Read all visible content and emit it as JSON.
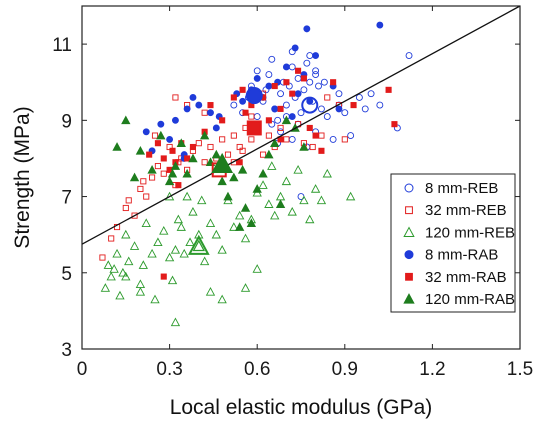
{
  "chart_data": {
    "type": "scatter",
    "xlabel": "Local elastic modulus (GPa)",
    "ylabel": "Strength (MPa)",
    "xlim": [
      0,
      1.5
    ],
    "ylim": [
      3,
      12
    ],
    "xticks": [
      "0",
      "0.3",
      "0.6",
      "0.9",
      "1.2",
      "1.5"
    ],
    "yticks": [
      "3",
      "5",
      "7",
      "9",
      "11"
    ],
    "xtick_values": [
      0,
      0.3,
      0.6,
      0.9,
      1.2,
      1.5
    ],
    "ytick_values": [
      3,
      5,
      7,
      9,
      11
    ],
    "grid": false,
    "legend_position": "bottom-right",
    "fit_line": {
      "x": [
        0,
        1.5
      ],
      "y": [
        5.75,
        12.0
      ]
    },
    "series": [
      {
        "name": "8 mm-REB",
        "marker": "circle",
        "filled": false,
        "color": "#1f3bd9",
        "points": [
          [
            0.52,
            9.4
          ],
          [
            0.55,
            9.2
          ],
          [
            0.57,
            9.6
          ],
          [
            0.58,
            9.9
          ],
          [
            0.6,
            9.1
          ],
          [
            0.62,
            9.5
          ],
          [
            0.63,
            9.8
          ],
          [
            0.64,
            10.2
          ],
          [
            0.66,
            9.3
          ],
          [
            0.67,
            9.0
          ],
          [
            0.68,
            9.7
          ],
          [
            0.69,
            10.0
          ],
          [
            0.7,
            9.4
          ],
          [
            0.71,
            9.9
          ],
          [
            0.72,
            10.4
          ],
          [
            0.73,
            9.6
          ],
          [
            0.74,
            10.1
          ],
          [
            0.75,
            9.2
          ],
          [
            0.76,
            9.8
          ],
          [
            0.77,
            10.5
          ],
          [
            0.78,
            10.0
          ],
          [
            0.79,
            9.5
          ],
          [
            0.8,
            10.3
          ],
          [
            0.81,
            9.9
          ],
          [
            0.82,
            9.3
          ],
          [
            0.65,
            8.9
          ],
          [
            0.68,
            8.7
          ],
          [
            0.72,
            8.5
          ],
          [
            0.74,
            8.9
          ],
          [
            0.77,
            8.3
          ],
          [
            0.8,
            8.7
          ],
          [
            0.84,
            9.1
          ],
          [
            0.86,
            8.5
          ],
          [
            0.88,
            9.4
          ],
          [
            0.9,
            9.2
          ],
          [
            0.92,
            8.6
          ],
          [
            0.95,
            9.6
          ],
          [
            0.97,
            9.3
          ],
          [
            0.6,
            10.3
          ],
          [
            0.65,
            10.6
          ],
          [
            0.72,
            10.8
          ],
          [
            0.78,
            10.7
          ],
          [
            0.8,
            10.2
          ],
          [
            0.88,
            9.7
          ],
          [
            0.99,
            9.7
          ],
          [
            1.02,
            9.4
          ],
          [
            1.08,
            8.8
          ],
          [
            1.12,
            10.7
          ],
          [
            0.75,
            7.0
          ],
          [
            0.67,
            8.4
          ],
          [
            0.58,
            8.9
          ],
          [
            0.6,
            9.6
          ],
          [
            0.7,
            9.1
          ],
          [
            0.83,
            10.0
          ]
        ]
      },
      {
        "name": "32 mm-REB",
        "marker": "square",
        "filled": false,
        "color": "#e21b1b",
        "points": [
          [
            0.07,
            5.4
          ],
          [
            0.1,
            5.9
          ],
          [
            0.12,
            6.2
          ],
          [
            0.15,
            6.7
          ],
          [
            0.16,
            6.9
          ],
          [
            0.18,
            6.5
          ],
          [
            0.2,
            7.2
          ],
          [
            0.22,
            7.0
          ],
          [
            0.24,
            7.5
          ],
          [
            0.26,
            7.8
          ],
          [
            0.28,
            7.6
          ],
          [
            0.3,
            8.3
          ],
          [
            0.32,
            7.3
          ],
          [
            0.34,
            8.0
          ],
          [
            0.36,
            7.7
          ],
          [
            0.38,
            8.2
          ],
          [
            0.4,
            8.4
          ],
          [
            0.42,
            7.9
          ],
          [
            0.44,
            8.3
          ],
          [
            0.46,
            8.0
          ],
          [
            0.48,
            8.5
          ],
          [
            0.5,
            8.1
          ],
          [
            0.52,
            8.6
          ],
          [
            0.54,
            8.3
          ],
          [
            0.56,
            8.8
          ],
          [
            0.58,
            8.5
          ],
          [
            0.62,
            8.1
          ],
          [
            0.64,
            8.6
          ],
          [
            0.66,
            8.3
          ],
          [
            0.68,
            8.8
          ],
          [
            0.7,
            8.5
          ],
          [
            0.74,
            8.9
          ],
          [
            0.76,
            8.4
          ],
          [
            0.79,
            8.3
          ],
          [
            0.82,
            8.6
          ],
          [
            0.84,
            9.6
          ],
          [
            0.88,
            9.4
          ],
          [
            0.32,
            9.6
          ],
          [
            0.36,
            9.4
          ],
          [
            0.42,
            9.2
          ],
          [
            0.58,
            9.1
          ],
          [
            0.62,
            9.7
          ],
          [
            0.25,
            8.6
          ],
          [
            0.21,
            7.4
          ],
          [
            0.33,
            7.9
          ],
          [
            0.55,
            8.2
          ],
          [
            0.9,
            8.5
          ],
          [
            0.52,
            7.9
          ]
        ]
      },
      {
        "name": "120 mm-REB",
        "marker": "triangle",
        "filled": false,
        "color": "#2c9a2c",
        "points": [
          [
            0.08,
            4.6
          ],
          [
            0.09,
            5.2
          ],
          [
            0.1,
            4.9
          ],
          [
            0.12,
            5.5
          ],
          [
            0.13,
            4.4
          ],
          [
            0.14,
            5.0
          ],
          [
            0.15,
            6.0
          ],
          [
            0.16,
            5.3
          ],
          [
            0.18,
            5.7
          ],
          [
            0.2,
            4.7
          ],
          [
            0.21,
            5.2
          ],
          [
            0.22,
            6.3
          ],
          [
            0.24,
            5.5
          ],
          [
            0.25,
            4.3
          ],
          [
            0.26,
            5.8
          ],
          [
            0.28,
            6.1
          ],
          [
            0.3,
            5.4
          ],
          [
            0.31,
            4.8
          ],
          [
            0.32,
            5.6
          ],
          [
            0.33,
            6.4
          ],
          [
            0.34,
            6.2
          ],
          [
            0.35,
            5.5
          ],
          [
            0.36,
            7.0
          ],
          [
            0.38,
            6.6
          ],
          [
            0.4,
            6.0
          ],
          [
            0.41,
            6.9
          ],
          [
            0.42,
            5.3
          ],
          [
            0.44,
            6.3
          ],
          [
            0.46,
            6.0
          ],
          [
            0.48,
            5.6
          ],
          [
            0.5,
            6.9
          ],
          [
            0.52,
            6.2
          ],
          [
            0.54,
            6.5
          ],
          [
            0.56,
            5.9
          ],
          [
            0.58,
            6.4
          ],
          [
            0.6,
            7.1
          ],
          [
            0.62,
            7.3
          ],
          [
            0.64,
            6.8
          ],
          [
            0.66,
            6.5
          ],
          [
            0.68,
            7.0
          ],
          [
            0.7,
            7.4
          ],
          [
            0.72,
            6.6
          ],
          [
            0.76,
            6.9
          ],
          [
            0.78,
            6.4
          ],
          [
            0.8,
            7.2
          ],
          [
            0.84,
            7.6
          ],
          [
            0.92,
            7.0
          ],
          [
            0.32,
            3.7
          ],
          [
            0.2,
            4.5
          ],
          [
            0.44,
            4.5
          ],
          [
            0.48,
            4.3
          ],
          [
            0.56,
            4.6
          ],
          [
            0.65,
            7.8
          ],
          [
            0.74,
            7.7
          ],
          [
            0.82,
            6.9
          ],
          [
            0.3,
            7.0
          ],
          [
            0.37,
            5.8
          ],
          [
            0.6,
            5.1
          ],
          [
            0.15,
            4.9
          ],
          [
            0.11,
            5.1
          ]
        ]
      },
      {
        "name": "8 mm-RAB",
        "marker": "circle",
        "filled": true,
        "color": "#1f3bd9",
        "points": [
          [
            0.22,
            8.7
          ],
          [
            0.24,
            8.2
          ],
          [
            0.27,
            8.9
          ],
          [
            0.3,
            8.5
          ],
          [
            0.32,
            9.0
          ],
          [
            0.35,
            8.1
          ],
          [
            0.38,
            9.6
          ],
          [
            0.4,
            9.4
          ],
          [
            0.44,
            9.2
          ],
          [
            0.46,
            8.8
          ],
          [
            0.55,
            9.5
          ],
          [
            0.58,
            9.8
          ],
          [
            0.6,
            10.1
          ],
          [
            0.62,
            9.6
          ],
          [
            0.64,
            9.9
          ],
          [
            0.66,
            9.3
          ],
          [
            0.7,
            10.4
          ],
          [
            0.72,
            9.1
          ],
          [
            0.74,
            9.7
          ],
          [
            0.76,
            10.2
          ],
          [
            0.78,
            9.5
          ],
          [
            0.8,
            10.7
          ],
          [
            0.73,
            10.9
          ],
          [
            0.86,
            9.9
          ],
          [
            0.88,
            9.3
          ],
          [
            0.77,
            11.4
          ],
          [
            1.02,
            11.5
          ],
          [
            0.47,
            9.1
          ],
          [
            0.53,
            9.7
          ],
          [
            0.67,
            10.0
          ],
          [
            0.35,
            8.0
          ],
          [
            0.36,
            9.3
          ]
        ]
      },
      {
        "name": "32 mm-RAB",
        "marker": "square",
        "filled": true,
        "color": "#e21b1b",
        "points": [
          [
            0.23,
            8.1
          ],
          [
            0.26,
            8.4
          ],
          [
            0.28,
            8.0
          ],
          [
            0.3,
            7.7
          ],
          [
            0.31,
            8.2
          ],
          [
            0.32,
            7.9
          ],
          [
            0.34,
            8.4
          ],
          [
            0.36,
            8.0
          ],
          [
            0.38,
            8.3
          ],
          [
            0.42,
            8.7
          ],
          [
            0.44,
            9.4
          ],
          [
            0.48,
            9.0
          ],
          [
            0.52,
            9.6
          ],
          [
            0.55,
            9.8
          ],
          [
            0.56,
            9.2
          ],
          [
            0.58,
            9.4
          ],
          [
            0.6,
            8.9
          ],
          [
            0.62,
            9.6
          ],
          [
            0.64,
            9.0
          ],
          [
            0.66,
            9.9
          ],
          [
            0.68,
            9.3
          ],
          [
            0.7,
            10.0
          ],
          [
            0.72,
            9.7
          ],
          [
            0.74,
            10.3
          ],
          [
            0.76,
            10.1
          ],
          [
            0.78,
            8.8
          ],
          [
            0.8,
            8.6
          ],
          [
            0.82,
            8.2
          ],
          [
            0.86,
            10.0
          ],
          [
            0.93,
            9.4
          ],
          [
            1.05,
            9.8
          ],
          [
            1.07,
            8.9
          ],
          [
            0.28,
            4.9
          ],
          [
            0.33,
            7.3
          ],
          [
            0.54,
            7.9
          ],
          [
            0.68,
            8.5
          ]
        ]
      },
      {
        "name": "120 mm-RAB",
        "marker": "triangle",
        "filled": true,
        "color": "#1e7d1e",
        "points": [
          [
            0.12,
            8.3
          ],
          [
            0.15,
            9.0
          ],
          [
            0.18,
            7.5
          ],
          [
            0.2,
            8.2
          ],
          [
            0.24,
            7.7
          ],
          [
            0.27,
            8.6
          ],
          [
            0.3,
            7.4
          ],
          [
            0.32,
            7.8
          ],
          [
            0.36,
            7.6
          ],
          [
            0.38,
            8.0
          ],
          [
            0.42,
            8.6
          ],
          [
            0.44,
            7.9
          ],
          [
            0.46,
            8.1
          ],
          [
            0.5,
            7.0
          ],
          [
            0.52,
            7.5
          ],
          [
            0.55,
            7.7
          ],
          [
            0.56,
            6.7
          ],
          [
            0.58,
            6.3
          ],
          [
            0.6,
            7.2
          ],
          [
            0.62,
            7.6
          ],
          [
            0.64,
            8.1
          ],
          [
            0.66,
            8.4
          ],
          [
            0.68,
            6.8
          ],
          [
            0.7,
            9.0
          ],
          [
            0.73,
            8.8
          ],
          [
            0.76,
            8.3
          ],
          [
            0.54,
            6.2
          ],
          [
            0.48,
            7.4
          ],
          [
            0.34,
            8.4
          ],
          [
            0.31,
            7.6
          ]
        ]
      }
    ],
    "highlighted": [
      {
        "series": "8 mm-REB",
        "x": 0.78,
        "y": 9.4
      },
      {
        "series": "32 mm-REB",
        "x": 0.47,
        "y": 7.7
      },
      {
        "series": "120 mm-REB",
        "x": 0.4,
        "y": 5.7
      },
      {
        "series": "8 mm-RAB",
        "x": 0.59,
        "y": 9.65
      },
      {
        "series": "32 mm-RAB",
        "x": 0.59,
        "y": 8.8
      },
      {
        "series": "120 mm-RAB",
        "x": 0.48,
        "y": 7.85
      }
    ]
  }
}
